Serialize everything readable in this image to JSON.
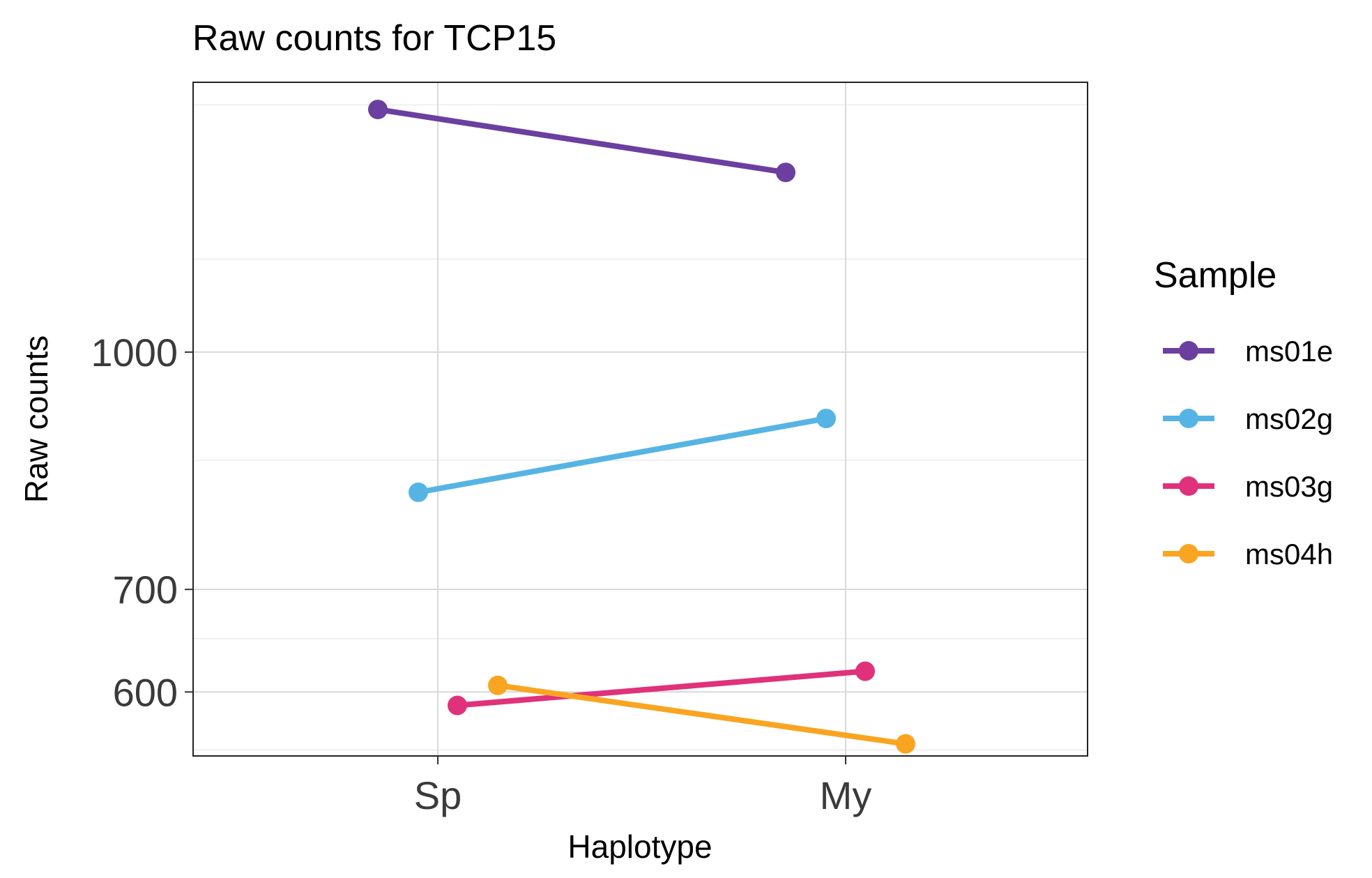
{
  "chart_data": {
    "type": "line",
    "title": "Raw counts for TCP15",
    "xlabel": "Haplotype",
    "ylabel": "Raw counts",
    "y_scale": "log",
    "categories": [
      "Sp",
      "My"
    ],
    "y_ticks": [
      600,
      700,
      1000
    ],
    "ylim": [
      545,
      1500
    ],
    "grid": true,
    "legend": {
      "title": "Sample",
      "placement": "right"
    },
    "series": [
      {
        "name": "ms01e",
        "color": "#6b3fa0",
        "values": [
          1440,
          1310
        ]
      },
      {
        "name": "ms02g",
        "color": "#56b4e4",
        "values": [
          810,
          905
        ]
      },
      {
        "name": "ms03g",
        "color": "#e0327a",
        "values": [
          588,
          619
        ]
      },
      {
        "name": "ms04h",
        "color": "#f9a521",
        "values": [
          606,
          555
        ]
      }
    ]
  }
}
